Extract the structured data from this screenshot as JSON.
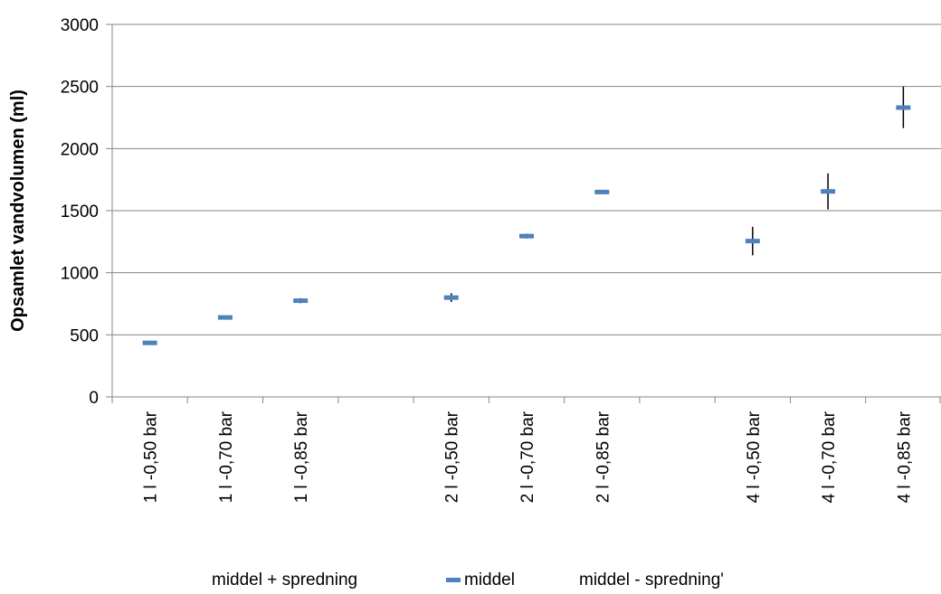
{
  "chart_data": {
    "type": "scatter",
    "title": "",
    "xlabel": "",
    "ylabel": "Opsamlet vandvolumen (ml)",
    "ylim": [
      0,
      3000
    ],
    "yticks": [
      0,
      500,
      1000,
      1500,
      2000,
      2500,
      3000
    ],
    "grid": "horizontal",
    "legend_position": "bottom",
    "categories": [
      "1 l  -0,50 bar",
      "1 l  -0,70 bar",
      "1 l  -0,85 bar",
      "",
      "2 l  -0,50 bar",
      "2 l  -0,70 bar",
      "2 l  -0,85 bar",
      "",
      "4 l  -0,50 bar",
      "4 l  -0,70 bar",
      "4 l  -0,85 bar"
    ],
    "series": [
      {
        "name": "middel + spredning",
        "values": [
          445,
          650,
          795,
          null,
          835,
          1315,
          1665,
          null,
          1370,
          1800,
          2500
        ]
      },
      {
        "name": "middel",
        "values": [
          435,
          640,
          775,
          null,
          800,
          1295,
          1650,
          null,
          1255,
          1655,
          2330
        ]
      },
      {
        "name": "middel - spredning'",
        "values": [
          425,
          630,
          755,
          null,
          765,
          1275,
          1635,
          null,
          1140,
          1510,
          2165
        ]
      }
    ],
    "colors": {
      "middel": "#4f81bd",
      "spread": "#000000",
      "grid": "#868686"
    }
  }
}
